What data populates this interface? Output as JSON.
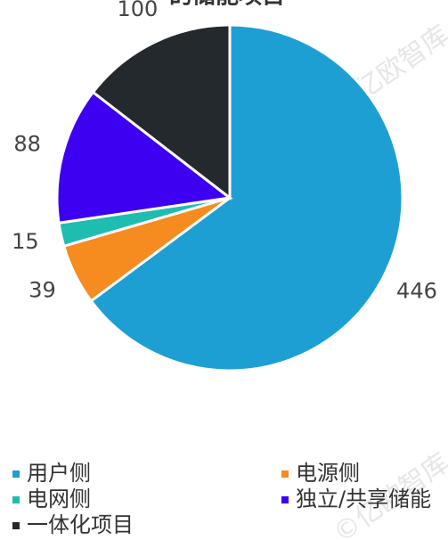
{
  "chart_data": {
    "type": "pie",
    "title": "的储能项目",
    "watermark": "©亿欧智库",
    "categories": [
      "用户侧",
      "电源侧",
      "电网侧",
      "独立/共享储能",
      "一体化项目"
    ],
    "values": [
      446,
      39,
      15,
      88,
      100
    ],
    "colors": [
      "#1e9fd4",
      "#f68b1f",
      "#1fbdb0",
      "#3d00f0",
      "#24292e"
    ],
    "legend": "bottom"
  }
}
